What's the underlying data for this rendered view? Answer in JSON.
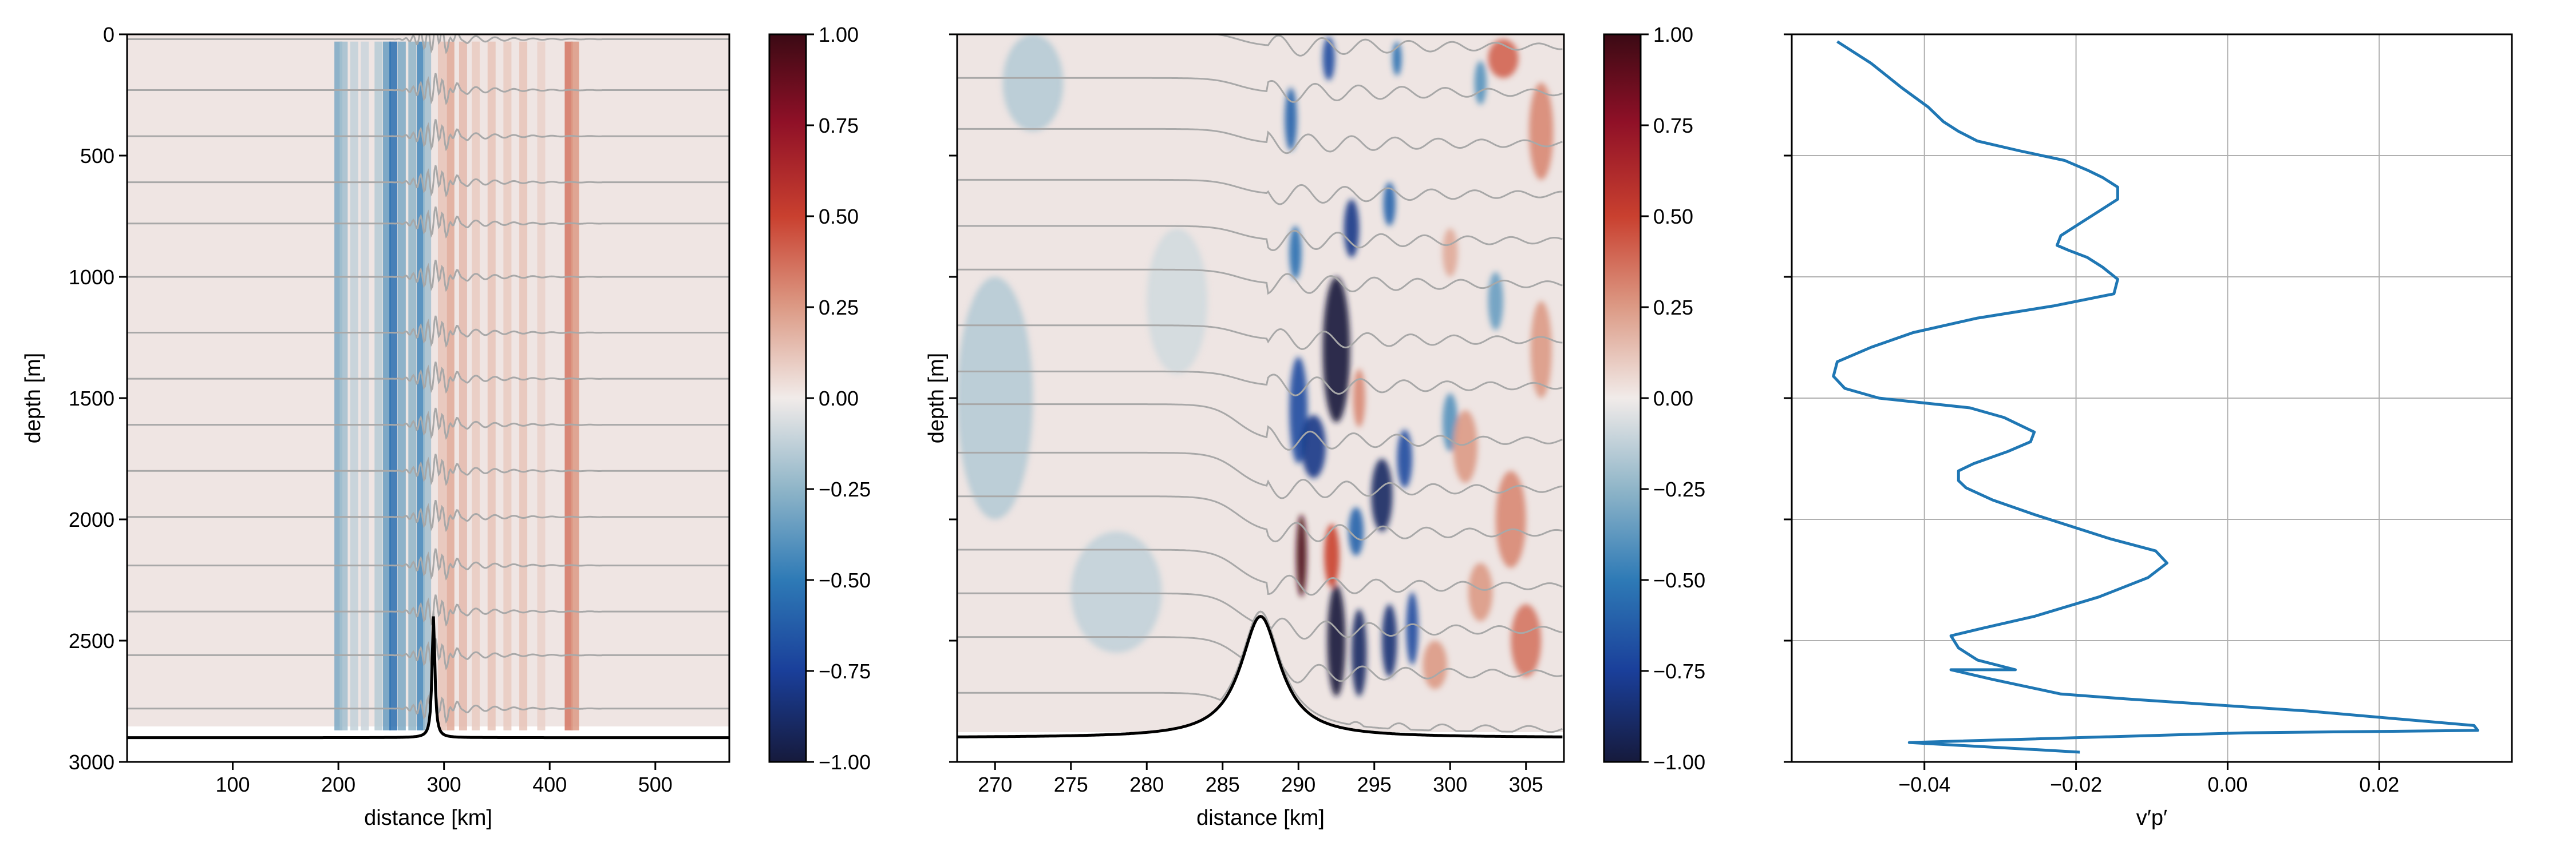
{
  "chart_data": [
    {
      "type": "heatmap",
      "xlabel": "distance [km]",
      "ylabel": "depth [m]",
      "xlim": [
        0,
        570
      ],
      "ylim": [
        3000,
        0
      ],
      "xticks": [
        100,
        200,
        300,
        400,
        500
      ],
      "yticks": [
        0,
        500,
        1000,
        1500,
        2000,
        2500,
        3000
      ],
      "field_x_extent": [
        190,
        430
      ],
      "field_bands": [
        {
          "x": 200,
          "v": -0.3
        },
        {
          "x": 205,
          "v": -0.2
        },
        {
          "x": 215,
          "v": -0.12
        },
        {
          "x": 225,
          "v": -0.1
        },
        {
          "x": 238,
          "v": -0.15
        },
        {
          "x": 246,
          "v": -0.35
        },
        {
          "x": 252,
          "v": -0.55
        },
        {
          "x": 260,
          "v": -0.3
        },
        {
          "x": 270,
          "v": -0.25
        },
        {
          "x": 278,
          "v": -0.45
        },
        {
          "x": 284,
          "v": -0.2
        },
        {
          "x": 298,
          "v": 0.12
        },
        {
          "x": 306,
          "v": 0.2
        },
        {
          "x": 318,
          "v": 0.15
        },
        {
          "x": 330,
          "v": 0.1
        },
        {
          "x": 345,
          "v": 0.12
        },
        {
          "x": 360,
          "v": 0.1
        },
        {
          "x": 375,
          "v": 0.12
        },
        {
          "x": 392,
          "v": 0.08
        },
        {
          "x": 418,
          "v": 0.35
        },
        {
          "x": 424,
          "v": 0.25
        }
      ],
      "contour_depths": [
        20,
        230,
        420,
        610,
        780,
        1000,
        1230,
        1420,
        1610,
        1800,
        1990,
        2190,
        2380,
        2560,
        2780
      ],
      "topography": {
        "center_km": 290,
        "peak_depth": 2400,
        "base_depth": 2900,
        "half_width_km": 1.6
      },
      "colormap": {
        "min": -1.0,
        "max": 1.0,
        "ticks": [
          "1.00",
          "0.75",
          "0.50",
          "0.25",
          "0.00",
          "−0.25",
          "−0.50",
          "−0.75",
          "−1.00"
        ]
      }
    },
    {
      "type": "heatmap",
      "xlabel": "distance [km]",
      "ylabel": "depth [m]",
      "xlim": [
        267.5,
        307.5
      ],
      "ylim": [
        3000,
        0
      ],
      "xticks": [
        270,
        275,
        280,
        285,
        290,
        295,
        300,
        305
      ],
      "yticks": [
        0,
        500,
        1000,
        1500,
        2000,
        2500,
        3000
      ],
      "field_depth_max": 2870,
      "blue_patches": [
        {
          "x": 292.5,
          "depth": 1300,
          "rx": 0.9,
          "rdepth": 300,
          "v": -1.0
        },
        {
          "x": 290,
          "depth": 1550,
          "rx": 0.6,
          "rdepth": 220,
          "v": -0.7
        },
        {
          "x": 291,
          "depth": 1700,
          "rx": 0.8,
          "rdepth": 130,
          "v": -0.8
        },
        {
          "x": 295.5,
          "depth": 1900,
          "rx": 0.7,
          "rdepth": 150,
          "v": -0.9
        },
        {
          "x": 297,
          "depth": 1750,
          "rx": 0.5,
          "rdepth": 120,
          "v": -0.7
        },
        {
          "x": 292.5,
          "depth": 2500,
          "rx": 0.6,
          "rdepth": 230,
          "v": -1.0
        },
        {
          "x": 294,
          "depth": 2550,
          "rx": 0.5,
          "rdepth": 180,
          "v": -0.9
        },
        {
          "x": 296,
          "depth": 2500,
          "rx": 0.5,
          "rdepth": 150,
          "v": -0.85
        },
        {
          "x": 297.5,
          "depth": 2450,
          "rx": 0.4,
          "rdepth": 150,
          "v": -0.7
        },
        {
          "x": 293.5,
          "depth": 800,
          "rx": 0.5,
          "rdepth": 120,
          "v": -0.8
        },
        {
          "x": 296,
          "depth": 700,
          "rx": 0.4,
          "rdepth": 90,
          "v": -0.6
        },
        {
          "x": 292,
          "depth": 100,
          "rx": 0.4,
          "rdepth": 90,
          "v": -0.7
        },
        {
          "x": 296.5,
          "depth": 100,
          "rx": 0.3,
          "rdepth": 70,
          "v": -0.55
        },
        {
          "x": 302,
          "depth": 200,
          "rx": 0.4,
          "rdepth": 90,
          "v": -0.4
        },
        {
          "x": 289.5,
          "depth": 350,
          "rx": 0.4,
          "rdepth": 130,
          "v": -0.6
        },
        {
          "x": 289.8,
          "depth": 900,
          "rx": 0.4,
          "rdepth": 110,
          "v": -0.55
        },
        {
          "x": 293.8,
          "depth": 2050,
          "rx": 0.5,
          "rdepth": 100,
          "v": -0.6
        },
        {
          "x": 300,
          "depth": 1600,
          "rx": 0.5,
          "rdepth": 120,
          "v": -0.4
        },
        {
          "x": 303,
          "depth": 1100,
          "rx": 0.5,
          "rdepth": 120,
          "v": -0.35
        },
        {
          "x": 272.5,
          "depth": 200,
          "rx": 2.0,
          "rdepth": 200,
          "v": -0.15
        },
        {
          "x": 270,
          "depth": 1500,
          "rx": 2.5,
          "rdepth": 500,
          "v": -0.15
        },
        {
          "x": 278,
          "depth": 2300,
          "rx": 3.0,
          "rdepth": 250,
          "v": -0.12
        },
        {
          "x": 282,
          "depth": 1100,
          "rx": 2.0,
          "rdepth": 300,
          "v": -0.08
        }
      ],
      "red_patches": [
        {
          "x": 290.2,
          "depth": 2150,
          "rx": 0.35,
          "rdepth": 170,
          "v": 0.95
        },
        {
          "x": 292.2,
          "depth": 2150,
          "rx": 0.5,
          "rdepth": 130,
          "v": 0.5
        },
        {
          "x": 294,
          "depth": 1500,
          "rx": 0.4,
          "rdepth": 120,
          "v": 0.3
        },
        {
          "x": 301,
          "depth": 1700,
          "rx": 0.8,
          "rdepth": 150,
          "v": 0.25
        },
        {
          "x": 304,
          "depth": 2000,
          "rx": 1.0,
          "rdepth": 200,
          "v": 0.3
        },
        {
          "x": 305,
          "depth": 2500,
          "rx": 1.0,
          "rdepth": 150,
          "v": 0.35
        },
        {
          "x": 302,
          "depth": 2300,
          "rx": 0.8,
          "rdepth": 120,
          "v": 0.25
        },
        {
          "x": 299,
          "depth": 2600,
          "rx": 0.8,
          "rdepth": 100,
          "v": 0.25
        },
        {
          "x": 306,
          "depth": 400,
          "rx": 0.8,
          "rdepth": 200,
          "v": 0.3
        },
        {
          "x": 303.5,
          "depth": 100,
          "rx": 1.0,
          "rdepth": 80,
          "v": 0.4
        },
        {
          "x": 300,
          "depth": 900,
          "rx": 0.5,
          "rdepth": 100,
          "v": 0.2
        },
        {
          "x": 306,
          "depth": 1300,
          "rx": 0.7,
          "rdepth": 200,
          "v": 0.25
        }
      ],
      "contour_depths": [
        20,
        210,
        420,
        630,
        820,
        1000,
        1230,
        1420,
        1600,
        1800,
        1980,
        2200,
        2380,
        2560,
        2790
      ],
      "topography": {
        "center_km": 287.5,
        "peak_depth": 2400,
        "base_depth": 2900,
        "half_width_km": 1.6
      },
      "colormap": {
        "min": -1.0,
        "max": 1.0,
        "ticks": [
          "1.00",
          "0.75",
          "0.50",
          "0.25",
          "0.00",
          "−0.25",
          "−0.50",
          "−0.75",
          "−1.00"
        ]
      }
    },
    {
      "type": "line",
      "xlabel": "v′p′",
      "ylabel": "",
      "xlim": [
        -0.0575,
        0.0375
      ],
      "ylim": [
        3000,
        0
      ],
      "xticks": [
        -0.04,
        -0.02,
        0.0,
        0.02
      ],
      "xtick_labels": [
        "−0.04",
        "−0.02",
        "0.00",
        "0.02"
      ],
      "yticks": [
        0,
        500,
        1000,
        1500,
        2000,
        2500,
        3000
      ],
      "grid": true,
      "color": "#1f77b4",
      "x": [
        -0.0515,
        -0.047,
        -0.043,
        -0.0395,
        -0.0375,
        -0.0355,
        -0.033,
        -0.0275,
        -0.0215,
        -0.0185,
        -0.0165,
        -0.0145,
        -0.0145,
        -0.0165,
        -0.0185,
        -0.022,
        -0.0225,
        -0.021,
        -0.0185,
        -0.0165,
        -0.0145,
        -0.015,
        -0.023,
        -0.033,
        -0.0415,
        -0.047,
        -0.0515,
        -0.052,
        -0.0505,
        -0.046,
        -0.04,
        -0.034,
        -0.0295,
        -0.0255,
        -0.026,
        -0.029,
        -0.0335,
        -0.0355,
        -0.0355,
        -0.0345,
        -0.031,
        -0.0255,
        -0.0205,
        -0.0155,
        -0.0095,
        -0.008,
        -0.0105,
        -0.017,
        -0.0255,
        -0.0325,
        -0.0365,
        -0.0355,
        -0.033,
        -0.028,
        -0.0365,
        -0.031,
        -0.022,
        -0.0135,
        0.0105,
        0.0325,
        0.033,
        0.0025,
        -0.042,
        -0.025,
        -0.0195
      ],
      "y": [
        30,
        120,
        220,
        300,
        360,
        400,
        440,
        480,
        520,
        560,
        590,
        630,
        680,
        720,
        760,
        830,
        870,
        890,
        920,
        960,
        1010,
        1070,
        1120,
        1170,
        1230,
        1290,
        1350,
        1410,
        1460,
        1500,
        1520,
        1540,
        1580,
        1640,
        1680,
        1720,
        1770,
        1800,
        1840,
        1870,
        1920,
        1980,
        2030,
        2080,
        2130,
        2180,
        2240,
        2320,
        2400,
        2450,
        2480,
        2530,
        2580,
        2620,
        2620,
        2660,
        2720,
        2740,
        2790,
        2850,
        2870,
        2880,
        2920,
        2950,
        2960
      ]
    }
  ]
}
